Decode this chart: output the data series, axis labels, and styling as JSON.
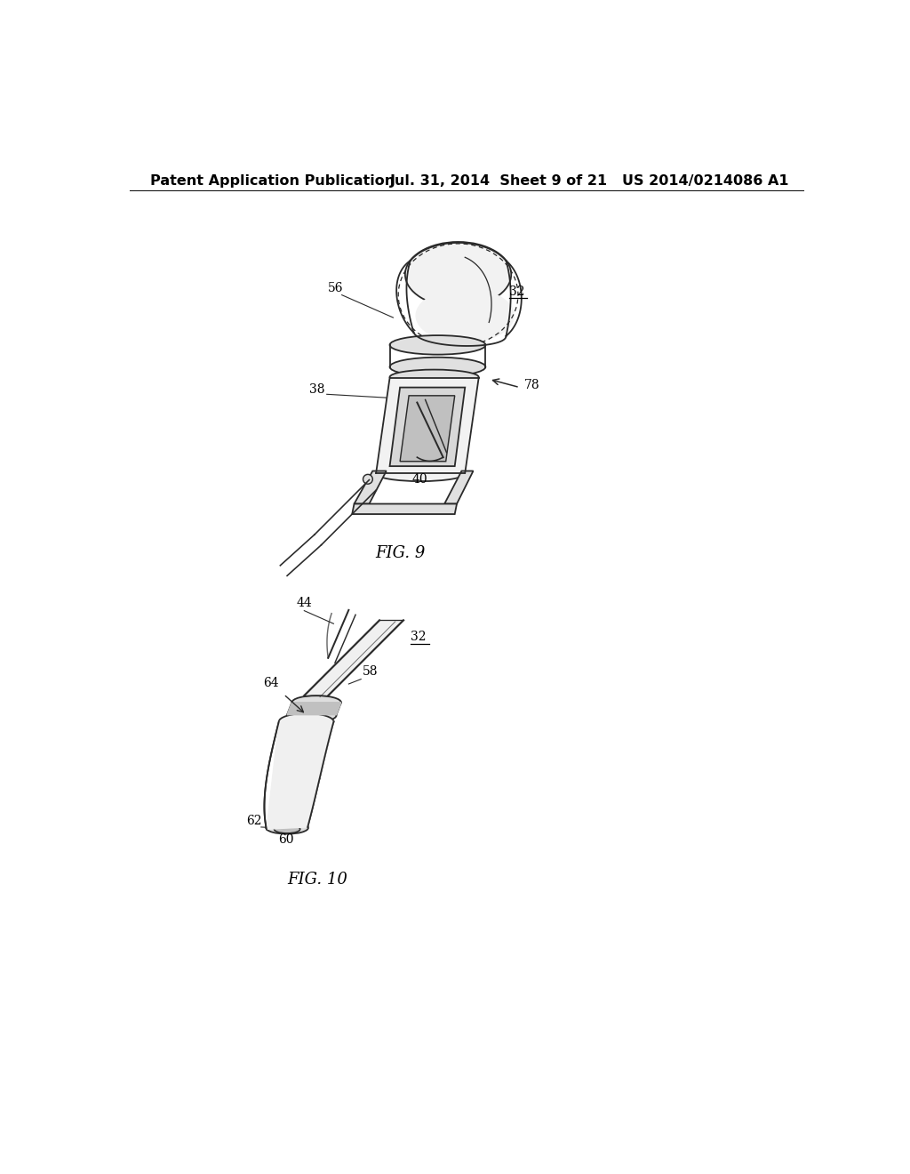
{
  "background_color": "#ffffff",
  "header_left": "Patent Application Publication",
  "header_center": "Jul. 31, 2014  Sheet 9 of 21",
  "header_right": "US 2014/0214086 A1",
  "fig9_label": "FIG. 9",
  "fig10_label": "FIG. 10",
  "line_color": "#1a1a1a",
  "text_color": "#000000",
  "header_fontsize": 11.5,
  "label_fontsize": 10,
  "fig_label_fontsize": 13
}
